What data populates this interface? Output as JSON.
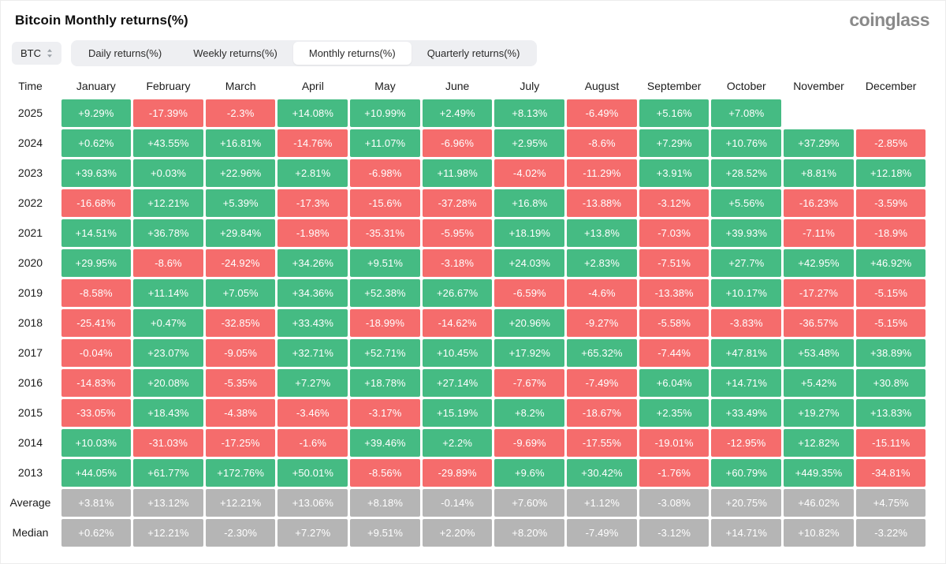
{
  "page": {
    "title": "Bitcoin Monthly returns(%)",
    "logo": "coinglass"
  },
  "colors": {
    "positive": "#45bb83",
    "negative": "#f56c6c",
    "summary": "#b5b5b5"
  },
  "controls": {
    "symbol_selector": {
      "value": "BTC"
    },
    "tabs": [
      {
        "label": "Daily returns(%)",
        "active": false
      },
      {
        "label": "Weekly returns(%)",
        "active": false
      },
      {
        "label": "Monthly returns(%)",
        "active": true
      },
      {
        "label": "Quarterly returns(%)",
        "active": false
      }
    ]
  },
  "table": {
    "time_header": "Time",
    "months": [
      "January",
      "February",
      "March",
      "April",
      "May",
      "June",
      "July",
      "August",
      "September",
      "October",
      "November",
      "December"
    ],
    "rows": [
      {
        "label": "2025",
        "type": "year",
        "values": [
          "+9.29%",
          "-17.39%",
          "-2.3%",
          "+14.08%",
          "+10.99%",
          "+2.49%",
          "+8.13%",
          "-6.49%",
          "+5.16%",
          "+7.08%",
          "",
          ""
        ]
      },
      {
        "label": "2024",
        "type": "year",
        "values": [
          "+0.62%",
          "+43.55%",
          "+16.81%",
          "-14.76%",
          "+11.07%",
          "-6.96%",
          "+2.95%",
          "-8.6%",
          "+7.29%",
          "+10.76%",
          "+37.29%",
          "-2.85%"
        ]
      },
      {
        "label": "2023",
        "type": "year",
        "values": [
          "+39.63%",
          "+0.03%",
          "+22.96%",
          "+2.81%",
          "-6.98%",
          "+11.98%",
          "-4.02%",
          "-11.29%",
          "+3.91%",
          "+28.52%",
          "+8.81%",
          "+12.18%"
        ]
      },
      {
        "label": "2022",
        "type": "year",
        "values": [
          "-16.68%",
          "+12.21%",
          "+5.39%",
          "-17.3%",
          "-15.6%",
          "-37.28%",
          "+16.8%",
          "-13.88%",
          "-3.12%",
          "+5.56%",
          "-16.23%",
          "-3.59%"
        ]
      },
      {
        "label": "2021",
        "type": "year",
        "values": [
          "+14.51%",
          "+36.78%",
          "+29.84%",
          "-1.98%",
          "-35.31%",
          "-5.95%",
          "+18.19%",
          "+13.8%",
          "-7.03%",
          "+39.93%",
          "-7.11%",
          "-18.9%"
        ]
      },
      {
        "label": "2020",
        "type": "year",
        "values": [
          "+29.95%",
          "-8.6%",
          "-24.92%",
          "+34.26%",
          "+9.51%",
          "-3.18%",
          "+24.03%",
          "+2.83%",
          "-7.51%",
          "+27.7%",
          "+42.95%",
          "+46.92%"
        ]
      },
      {
        "label": "2019",
        "type": "year",
        "values": [
          "-8.58%",
          "+11.14%",
          "+7.05%",
          "+34.36%",
          "+52.38%",
          "+26.67%",
          "-6.59%",
          "-4.6%",
          "-13.38%",
          "+10.17%",
          "-17.27%",
          "-5.15%"
        ]
      },
      {
        "label": "2018",
        "type": "year",
        "values": [
          "-25.41%",
          "+0.47%",
          "-32.85%",
          "+33.43%",
          "-18.99%",
          "-14.62%",
          "+20.96%",
          "-9.27%",
          "-5.58%",
          "-3.83%",
          "-36.57%",
          "-5.15%"
        ]
      },
      {
        "label": "2017",
        "type": "year",
        "values": [
          "-0.04%",
          "+23.07%",
          "-9.05%",
          "+32.71%",
          "+52.71%",
          "+10.45%",
          "+17.92%",
          "+65.32%",
          "-7.44%",
          "+47.81%",
          "+53.48%",
          "+38.89%"
        ]
      },
      {
        "label": "2016",
        "type": "year",
        "values": [
          "-14.83%",
          "+20.08%",
          "-5.35%",
          "+7.27%",
          "+18.78%",
          "+27.14%",
          "-7.67%",
          "-7.49%",
          "+6.04%",
          "+14.71%",
          "+5.42%",
          "+30.8%"
        ]
      },
      {
        "label": "2015",
        "type": "year",
        "values": [
          "-33.05%",
          "+18.43%",
          "-4.38%",
          "-3.46%",
          "-3.17%",
          "+15.19%",
          "+8.2%",
          "-18.67%",
          "+2.35%",
          "+33.49%",
          "+19.27%",
          "+13.83%"
        ]
      },
      {
        "label": "2014",
        "type": "year",
        "values": [
          "+10.03%",
          "-31.03%",
          "-17.25%",
          "-1.6%",
          "+39.46%",
          "+2.2%",
          "-9.69%",
          "-17.55%",
          "-19.01%",
          "-12.95%",
          "+12.82%",
          "-15.11%"
        ]
      },
      {
        "label": "2013",
        "type": "year",
        "values": [
          "+44.05%",
          "+61.77%",
          "+172.76%",
          "+50.01%",
          "-8.56%",
          "-29.89%",
          "+9.6%",
          "+30.42%",
          "-1.76%",
          "+60.79%",
          "+449.35%",
          "-34.81%"
        ]
      },
      {
        "label": "Average",
        "type": "summary",
        "values": [
          "+3.81%",
          "+13.12%",
          "+12.21%",
          "+13.06%",
          "+8.18%",
          "-0.14%",
          "+7.60%",
          "+1.12%",
          "-3.08%",
          "+20.75%",
          "+46.02%",
          "+4.75%"
        ]
      },
      {
        "label": "Median",
        "type": "summary",
        "values": [
          "+0.62%",
          "+12.21%",
          "-2.30%",
          "+7.27%",
          "+9.51%",
          "+2.20%",
          "+8.20%",
          "-7.49%",
          "-3.12%",
          "+14.71%",
          "+10.82%",
          "-3.22%"
        ]
      }
    ]
  }
}
